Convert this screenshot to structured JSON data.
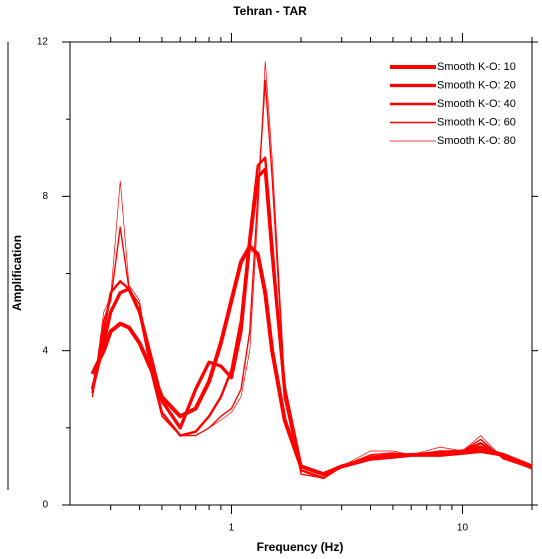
{
  "chart_data": {
    "type": "line",
    "title": "Tehran - TAR",
    "x_label": "Frequency (Hz)",
    "y_label": "Amplification",
    "x_scale": "log",
    "xlim": [
      0.2,
      20
    ],
    "ylim": [
      0,
      12
    ],
    "xticks": [
      1,
      10
    ],
    "xminorticks": [
      0.3,
      0.4,
      0.5,
      0.6,
      0.7,
      0.8,
      0.9,
      2,
      3,
      4,
      5,
      6,
      7,
      8,
      9,
      20
    ],
    "yticks": [
      0,
      4,
      8,
      12
    ],
    "yminorticks": [
      2,
      6,
      10
    ],
    "x": [
      0.25,
      0.28,
      0.3,
      0.33,
      0.36,
      0.4,
      0.45,
      0.5,
      0.6,
      0.7,
      0.8,
      0.9,
      1.0,
      1.1,
      1.2,
      1.3,
      1.4,
      1.5,
      1.7,
      2,
      2.5,
      3,
      4,
      5,
      6,
      8,
      10,
      12,
      15,
      20
    ],
    "legend": "upper right",
    "series": [
      {
        "name": "Smooth K-O: 10",
        "color": "#ff0000",
        "linewidth": 4,
        "values": [
          3.4,
          4.0,
          4.5,
          4.7,
          4.6,
          4.2,
          3.5,
          2.8,
          2.3,
          2.5,
          3.2,
          4.2,
          5.3,
          6.3,
          6.7,
          6.5,
          5.5,
          4.0,
          2.2,
          1.0,
          0.8,
          1.0,
          1.2,
          1.25,
          1.3,
          1.3,
          1.35,
          1.4,
          1.3,
          1.0
        ]
      },
      {
        "name": "Smooth K-O: 20",
        "color": "#ff0000",
        "linewidth": 3.3,
        "values": [
          3.0,
          4.2,
          5.0,
          5.5,
          5.6,
          5.0,
          3.8,
          2.7,
          2.0,
          3.0,
          3.7,
          3.6,
          3.3,
          4.5,
          6.8,
          8.5,
          8.7,
          6.5,
          3.0,
          1.0,
          0.8,
          1.0,
          1.2,
          1.3,
          1.3,
          1.35,
          1.4,
          1.5,
          1.3,
          1.0
        ]
      },
      {
        "name": "Smooth K-O: 40",
        "color": "#ff0000",
        "linewidth": 2.4,
        "values": [
          2.9,
          4.5,
          5.5,
          5.8,
          5.6,
          5.0,
          3.5,
          2.4,
          1.8,
          1.9,
          2.3,
          2.8,
          3.5,
          4.8,
          7.0,
          8.8,
          9.0,
          6.8,
          2.8,
          0.9,
          0.7,
          1.0,
          1.25,
          1.3,
          1.3,
          1.35,
          1.4,
          1.6,
          1.25,
          0.95
        ]
      },
      {
        "name": "Smooth K-O: 60",
        "color": "#ff0000",
        "linewidth": 1.4,
        "values": [
          2.8,
          4.8,
          5.3,
          7.2,
          5.6,
          5.2,
          3.4,
          2.3,
          1.8,
          1.8,
          2.0,
          2.3,
          2.5,
          3.0,
          4.5,
          8.0,
          11.0,
          8.5,
          3.0,
          0.8,
          0.7,
          1.0,
          1.3,
          1.35,
          1.3,
          1.4,
          1.4,
          1.7,
          1.2,
          0.95
        ]
      },
      {
        "name": "Smooth K-O: 80",
        "color": "#ff0000",
        "linewidth": 0.7,
        "values": [
          2.8,
          5.0,
          5.4,
          8.4,
          5.7,
          5.3,
          3.4,
          2.3,
          1.8,
          1.8,
          2.0,
          2.2,
          2.4,
          2.8,
          4.0,
          7.5,
          11.5,
          9.0,
          3.2,
          0.8,
          0.7,
          1.0,
          1.4,
          1.4,
          1.3,
          1.5,
          1.4,
          1.8,
          1.2,
          0.95
        ]
      }
    ]
  }
}
